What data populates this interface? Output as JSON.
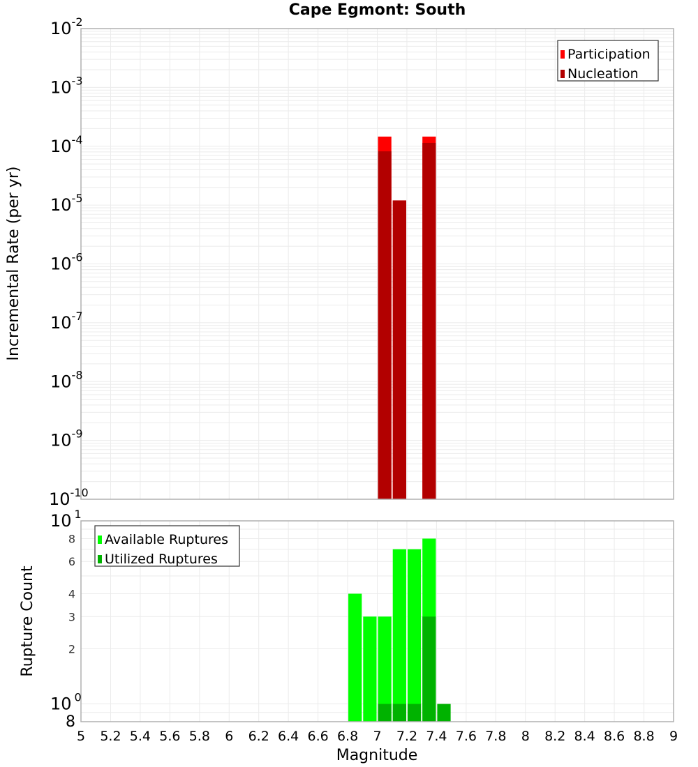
{
  "title": "Cape Egmont: South",
  "colors": {
    "participation": "#ff0000",
    "nucleation": "#b20000",
    "available": "#00ff00",
    "utilized": "#00b200",
    "grid": "#ebebeb",
    "frame": "#b0b0b0"
  },
  "top_plot": {
    "ylabel": "Incremental Rate (per yr)",
    "yticks": [
      {
        "base": "10",
        "exp": "-2",
        "value": 0.01
      },
      {
        "base": "10",
        "exp": "-3",
        "value": 0.001
      },
      {
        "base": "10",
        "exp": "-4",
        "value": 0.0001
      },
      {
        "base": "10",
        "exp": "-5",
        "value": 1e-05
      },
      {
        "base": "10",
        "exp": "-6",
        "value": 1e-06
      },
      {
        "base": "10",
        "exp": "-7",
        "value": 1e-07
      },
      {
        "base": "10",
        "exp": "-8",
        "value": 1e-08
      },
      {
        "base": "10",
        "exp": "-9",
        "value": 1e-09
      },
      {
        "base": "10",
        "exp": "-10",
        "value": 1e-10
      }
    ],
    "legend": [
      {
        "label": "Participation",
        "color": "#ff0000"
      },
      {
        "label": "Nucleation",
        "color": "#b20000"
      }
    ]
  },
  "bottom_plot": {
    "ylabel": "Rupture Count",
    "yticks_major": [
      {
        "base": "10",
        "exp": "1",
        "value": 10
      },
      {
        "base": "10",
        "exp": "0",
        "value": 1
      }
    ],
    "yticks_minor": [
      {
        "label": "8",
        "value": 8
      },
      {
        "label": "6",
        "value": 6
      },
      {
        "label": "4",
        "value": 4
      },
      {
        "label": "3",
        "value": 3
      },
      {
        "label": "2",
        "value": 2
      },
      {
        "label": "8",
        "value": 0.8
      }
    ],
    "legend": [
      {
        "label": "Available Ruptures",
        "color": "#00ff00"
      },
      {
        "label": "Utilized Ruptures",
        "color": "#00b200"
      }
    ]
  },
  "xaxis": {
    "label": "Magnitude",
    "ticks": [
      "5",
      "5.2",
      "5.4",
      "5.6",
      "5.8",
      "6",
      "6.2",
      "6.4",
      "6.6",
      "6.8",
      "7",
      "7.2",
      "7.4",
      "7.6",
      "7.8",
      "8",
      "8.2",
      "8.4",
      "8.6",
      "8.8",
      "9"
    ]
  },
  "chart_data": [
    {
      "type": "bar",
      "title": "Cape Egmont: South",
      "xlabel": "Magnitude",
      "ylabel": "Incremental Rate (per yr)",
      "yscale": "log",
      "xlim": [
        5,
        9
      ],
      "ylim": [
        1e-10,
        0.01
      ],
      "grid": true,
      "legend_position": "top-right",
      "bar_width": 0.1,
      "x": [
        7.05,
        7.15,
        7.35
      ],
      "series": [
        {
          "name": "Participation",
          "color": "#ff0000",
          "values": [
            0.000146,
            1.2e-05,
            0.000146
          ]
        },
        {
          "name": "Nucleation",
          "color": "#b20000",
          "values": [
            8.2e-05,
            1.2e-05,
            0.000114
          ]
        }
      ]
    },
    {
      "type": "bar",
      "xlabel": "Magnitude",
      "ylabel": "Rupture Count",
      "yscale": "log",
      "xlim": [
        5,
        9
      ],
      "ylim": [
        0.8,
        10
      ],
      "grid": true,
      "legend_position": "top-left",
      "bar_width": 0.1,
      "x": [
        6.85,
        6.95,
        7.05,
        7.15,
        7.25,
        7.35,
        7.45
      ],
      "series": [
        {
          "name": "Available Ruptures",
          "color": "#00ff00",
          "values": [
            4,
            3,
            3,
            7,
            7,
            8,
            0
          ]
        },
        {
          "name": "Utilized Ruptures",
          "color": "#00b200",
          "values": [
            0,
            0,
            1,
            1,
            1,
            3,
            1
          ]
        }
      ]
    }
  ]
}
